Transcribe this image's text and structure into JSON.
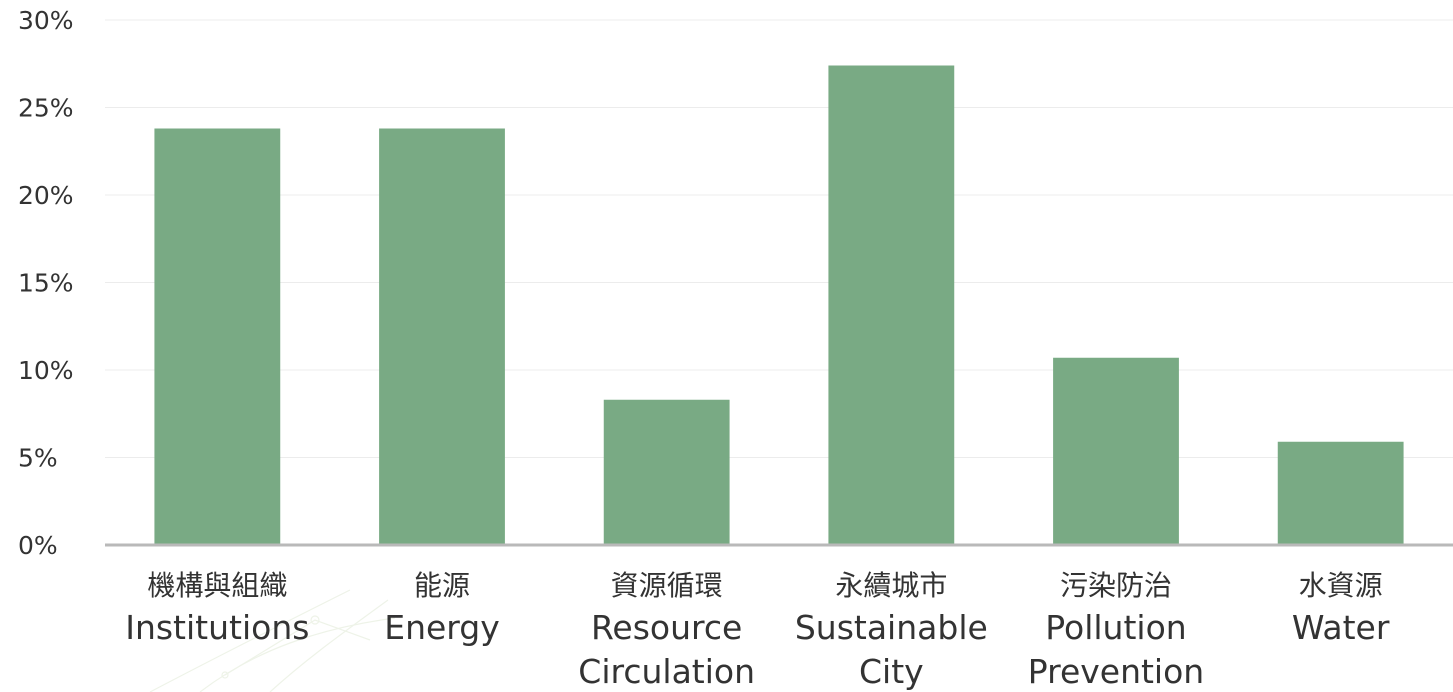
{
  "chart_data": {
    "type": "bar",
    "categories": [
      [
        "機構與組織",
        "Institutions"
      ],
      [
        "能源",
        "Energy"
      ],
      [
        "資源循環",
        "Resource",
        "Circulation"
      ],
      [
        "永續城市",
        "Sustainable",
        "City"
      ],
      [
        "污染防治",
        "Pollution",
        "Prevention"
      ],
      [
        "水資源",
        "Water"
      ]
    ],
    "values": [
      23.8,
      23.8,
      8.3,
      27.4,
      10.7,
      5.9
    ],
    "ylim": [
      0,
      30
    ],
    "y_ticks": [
      0,
      5,
      10,
      15,
      20,
      25,
      30
    ],
    "y_tick_labels": [
      "0%",
      "5%",
      "10%",
      "15%",
      "20%",
      "25%",
      "30%"
    ],
    "grid": true,
    "bar_color": "#79aa84",
    "axis_color": "#b9b9b9",
    "grid_color": "#ececec",
    "text_color": "#333333"
  }
}
